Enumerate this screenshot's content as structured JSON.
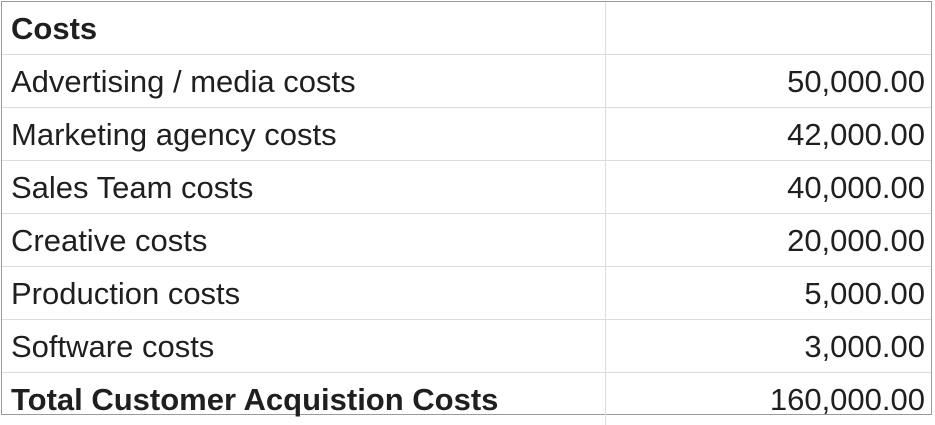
{
  "header": {
    "label": "Costs",
    "value": ""
  },
  "rows": [
    {
      "label": "Advertising / media costs",
      "value": "50,000.00"
    },
    {
      "label": "Marketing agency costs",
      "value": "42,000.00"
    },
    {
      "label": "Sales Team costs",
      "value": "40,000.00"
    },
    {
      "label": "Creative costs",
      "value": "20,000.00"
    },
    {
      "label": "Production costs",
      "value": "5,000.00"
    },
    {
      "label": "Software costs",
      "value": "3,000.00"
    }
  ],
  "total": {
    "label": "Total Customer Acquistion Costs",
    "value": "160,000.00"
  }
}
